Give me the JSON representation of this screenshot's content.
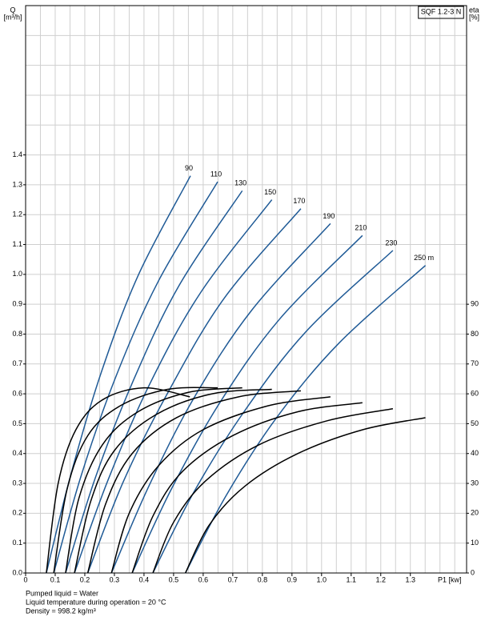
{
  "chart_data": {
    "type": "line",
    "title": "SQF 1.2-3 N",
    "ylabel": [
      "Q",
      "[m³/h]"
    ],
    "y2label": [
      "eta",
      "[%]"
    ],
    "xlabel": "P1 [kw]",
    "notes": [
      "Pumped liquid = Water",
      "Liquid temperature during operation = 20 °C",
      "Density = 998.2 kg/m³"
    ],
    "xlim": [
      0,
      1.49
    ],
    "ylim": [
      0,
      1.9
    ],
    "y2lim": [
      0,
      190
    ],
    "xticks": [
      0,
      0.1,
      0.2,
      0.3,
      0.4,
      0.5,
      0.6,
      0.7,
      0.8,
      0.9,
      {
        "value": 1,
        "label": "1.0"
      },
      1.1,
      1.2,
      1.3
    ],
    "yticks": [
      {
        "value": 0,
        "label": "0.0"
      },
      0.1,
      0.2,
      0.3,
      0.4,
      0.5,
      0.6,
      0.7,
      0.8,
      0.9,
      {
        "value": 1,
        "label": "1.0"
      },
      1.1,
      1.2,
      1.3,
      1.4
    ],
    "y2ticks": [
      0,
      10,
      20,
      30,
      40,
      50,
      60,
      70,
      80,
      90
    ],
    "grid": {
      "x_step": 0.05,
      "y_step": 0.1
    },
    "series": [
      {
        "name": "90",
        "color": "#1f5a96",
        "x": [
          0.07,
          0.153,
          0.255,
          0.382,
          0.557
        ],
        "values": [
          0,
          0.33,
          0.67,
          1.0,
          1.33
        ]
      },
      {
        "name": "110",
        "color": "#1f5a96",
        "x": [
          0.095,
          0.189,
          0.306,
          0.45,
          0.649
        ],
        "values": [
          0,
          0.33,
          0.66,
          0.98,
          1.31
        ]
      },
      {
        "name": "130",
        "color": "#1f5a96",
        "x": [
          0.135,
          0.236,
          0.362,
          0.517,
          0.732
        ],
        "values": [
          0,
          0.32,
          0.64,
          0.96,
          1.28
        ]
      },
      {
        "name": "150",
        "color": "#1f5a96",
        "x": [
          0.165,
          0.278,
          0.418,
          0.592,
          0.832
        ],
        "values": [
          0,
          0.31,
          0.63,
          0.94,
          1.25
        ]
      },
      {
        "name": "170",
        "color": "#1f5a96",
        "x": [
          0.21,
          0.332,
          0.484,
          0.671,
          0.93
        ],
        "values": [
          0,
          0.31,
          0.61,
          0.92,
          1.22
        ]
      },
      {
        "name": "190",
        "color": "#1f5a96",
        "x": [
          0.29,
          0.416,
          0.571,
          0.764,
          1.03
        ],
        "values": [
          0,
          0.29,
          0.59,
          0.88,
          1.17
        ]
      },
      {
        "name": "210",
        "color": "#1f5a96",
        "x": [
          0.36,
          0.492,
          0.656,
          0.858,
          1.138
        ],
        "values": [
          0,
          0.28,
          0.57,
          0.85,
          1.13
        ]
      },
      {
        "name": "230",
        "color": "#1f5a96",
        "x": [
          0.43,
          0.568,
          0.738,
          0.949,
          1.241
        ],
        "values": [
          0,
          0.27,
          0.54,
          0.81,
          1.08
        ]
      },
      {
        "name": "250 m",
        "color": "#1f5a96",
        "x": [
          0.54,
          0.678,
          0.848,
          1.059,
          1.351
        ],
        "values": [
          0,
          0.26,
          0.52,
          0.77,
          1.03
        ]
      },
      {
        "axis": "y2",
        "color": "#000000",
        "x": [
          0.07,
          0.11,
          0.17,
          0.26,
          0.4,
          0.555
        ],
        "values": [
          0,
          30,
          48,
          58,
          62,
          59
        ]
      },
      {
        "axis": "y2",
        "color": "#000000",
        "x": [
          0.095,
          0.14,
          0.21,
          0.32,
          0.48,
          0.649
        ],
        "values": [
          0,
          28,
          46,
          56,
          61.5,
          62
        ]
      },
      {
        "axis": "y2",
        "color": "#000000",
        "x": [
          0.135,
          0.18,
          0.26,
          0.38,
          0.55,
          0.732
        ],
        "values": [
          0,
          25,
          43,
          54,
          60.5,
          62
        ]
      },
      {
        "axis": "y2",
        "color": "#000000",
        "x": [
          0.165,
          0.22,
          0.3,
          0.44,
          0.63,
          0.832
        ],
        "values": [
          0,
          24,
          41,
          53,
          60,
          61.5
        ]
      },
      {
        "axis": "y2",
        "color": "#000000",
        "x": [
          0.21,
          0.27,
          0.36,
          0.51,
          0.72,
          0.93
        ],
        "values": [
          0,
          23,
          40,
          52,
          59,
          61
        ]
      },
      {
        "axis": "y2",
        "color": "#000000",
        "x": [
          0.29,
          0.35,
          0.45,
          0.6,
          0.82,
          1.03
        ],
        "values": [
          0,
          20,
          36,
          48,
          56,
          59
        ]
      },
      {
        "axis": "y2",
        "color": "#000000",
        "x": [
          0.36,
          0.43,
          0.53,
          0.7,
          0.92,
          1.138
        ],
        "values": [
          0,
          19,
          34,
          46,
          54,
          57
        ]
      },
      {
        "axis": "y2",
        "color": "#000000",
        "x": [
          0.43,
          0.5,
          0.61,
          0.79,
          1.02,
          1.241
        ],
        "values": [
          0,
          17,
          31,
          43,
          51,
          55
        ]
      },
      {
        "axis": "y2",
        "color": "#000000",
        "x": [
          0.54,
          0.62,
          0.74,
          0.92,
          1.14,
          1.351
        ],
        "values": [
          0,
          16,
          29,
          40,
          48,
          52
        ]
      }
    ]
  }
}
